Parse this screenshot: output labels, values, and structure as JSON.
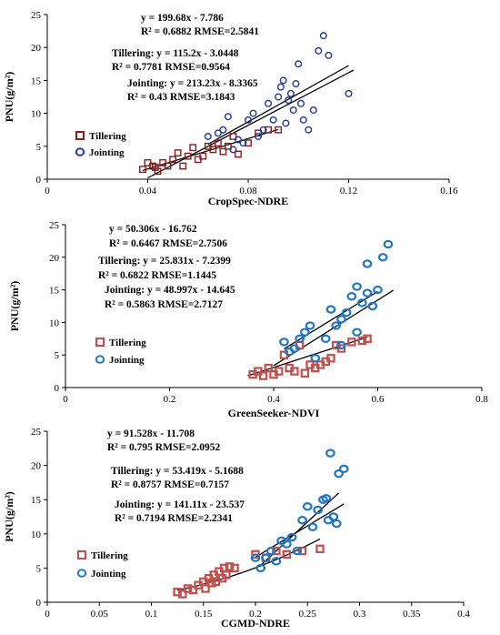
{
  "chart_data": [
    {
      "type": "scatter",
      "xlabel": "CropSpec-NDRE",
      "ylabel": "PNU(g/m²)",
      "xlim": [
        0,
        0.16
      ],
      "ylim": [
        0,
        25
      ],
      "xticks": [
        "0",
        "0.04",
        "0.08",
        "0.12",
        "0.16"
      ],
      "yticks": [
        "0",
        "5",
        "10",
        "15",
        "20",
        "25"
      ],
      "annotations": [
        "y = 199.68x - 7.786",
        "R² = 0.6882  RMSE=2.5841",
        "Tillering: y = 115.2x - 3.0448",
        "R² = 0.7781  RMSE=0.9564",
        "Jointing: y = 213.23x - 8.3365",
        "R² = 0.43  RMSE=3.1843"
      ],
      "legend": [
        {
          "label": "Tillering",
          "color": "#8b1a1a",
          "marker": "square"
        },
        {
          "label": "Jointing",
          "color": "#1f3a93",
          "marker": "circle"
        }
      ],
      "series": [
        {
          "name": "Tillering",
          "color": "#8b1a1a",
          "marker": "square",
          "x": [
            0.038,
            0.04,
            0.042,
            0.043,
            0.044,
            0.046,
            0.048,
            0.05,
            0.052,
            0.054,
            0.056,
            0.058,
            0.06,
            0.062,
            0.064,
            0.066,
            0.068,
            0.07,
            0.072,
            0.074,
            0.076,
            0.08,
            0.084,
            0.088,
            0.092
          ],
          "y": [
            1.5,
            2.5,
            2.0,
            1.8,
            1.2,
            2.5,
            2.0,
            3.0,
            4.0,
            2.0,
            3.5,
            4.8,
            3.0,
            3.5,
            5.0,
            4.5,
            5.5,
            4.2,
            5.0,
            6.5,
            3.8,
            5.5,
            7.0,
            7.5,
            7.5
          ]
        },
        {
          "name": "Jointing",
          "color": "#1f3a93",
          "marker": "circle",
          "x": [
            0.064,
            0.068,
            0.07,
            0.072,
            0.074,
            0.076,
            0.078,
            0.08,
            0.082,
            0.084,
            0.086,
            0.088,
            0.09,
            0.092,
            0.093,
            0.094,
            0.095,
            0.096,
            0.097,
            0.098,
            0.099,
            0.1,
            0.101,
            0.102,
            0.104,
            0.106,
            0.108,
            0.11,
            0.112,
            0.12
          ],
          "y": [
            6.5,
            7.0,
            7.5,
            9.5,
            4.5,
            6.0,
            5.5,
            9.0,
            10.0,
            6.5,
            7.5,
            11.5,
            9.0,
            12.5,
            14.0,
            15.0,
            8.5,
            12.0,
            13.0,
            10.5,
            14.5,
            17.5,
            11.5,
            9.0,
            7.5,
            10.5,
            19.5,
            21.8,
            18.8,
            13.0
          ]
        }
      ],
      "fits": [
        {
          "slope": 199.68,
          "intercept": -7.786,
          "x": [
            0.04,
            0.122
          ]
        },
        {
          "slope": 115.2,
          "intercept": -3.0448,
          "x": [
            0.038,
            0.092
          ]
        },
        {
          "slope": 213.23,
          "intercept": -8.3365,
          "x": [
            0.064,
            0.12
          ]
        }
      ]
    },
    {
      "type": "scatter",
      "xlabel": "GreenSeeker-NDVI",
      "ylabel": "PNU(g/m²)",
      "xlim": [
        0,
        0.8
      ],
      "ylim": [
        0,
        25
      ],
      "xticks": [
        "0",
        "0.2",
        "0.4",
        "0.6",
        "0.8"
      ],
      "yticks": [
        "0",
        "5",
        "10",
        "15",
        "20",
        "25"
      ],
      "annotations": [
        "y = 50.306x - 16.762",
        "R² = 0.6467  RMSE=2.7506",
        "Tillering: y = 25.831x - 7.2399",
        "R² = 0.6822  RMSE=1.1445",
        "Jointing: y = 48.997x - 14.645",
        "R² = 0.5863  RMSE=2.7127"
      ],
      "legend": [
        {
          "label": "Tillering",
          "color": "#c0504d",
          "marker": "square"
        },
        {
          "label": "Jointing",
          "color": "#1f77c4",
          "marker": "circle"
        }
      ],
      "series": [
        {
          "name": "Tillering",
          "color": "#c0504d",
          "marker": "square",
          "x": [
            0.36,
            0.37,
            0.38,
            0.39,
            0.4,
            0.41,
            0.42,
            0.43,
            0.44,
            0.45,
            0.46,
            0.47,
            0.48,
            0.49,
            0.5,
            0.51,
            0.52,
            0.53,
            0.55,
            0.57,
            0.58
          ],
          "y": [
            2.0,
            2.5,
            1.8,
            3.0,
            2.0,
            2.5,
            5.0,
            3.0,
            2.5,
            6.5,
            2.2,
            3.5,
            3.0,
            3.5,
            4.0,
            4.5,
            6.5,
            6.0,
            7.0,
            7.2,
            7.5
          ]
        },
        {
          "name": "Jointing",
          "color": "#1f77c4",
          "marker": "circle",
          "x": [
            0.42,
            0.43,
            0.44,
            0.45,
            0.46,
            0.47,
            0.48,
            0.5,
            0.51,
            0.52,
            0.53,
            0.54,
            0.55,
            0.56,
            0.57,
            0.58,
            0.58,
            0.59,
            0.6,
            0.61,
            0.62,
            0.56,
            0.53
          ],
          "y": [
            7.0,
            5.5,
            6.0,
            7.5,
            8.5,
            9.5,
            4.5,
            7.5,
            12.0,
            9.5,
            10.5,
            11.5,
            14.0,
            15.5,
            13.0,
            14.5,
            19.0,
            12.5,
            15.0,
            20.0,
            22.0,
            8.5,
            6.5
          ]
        }
      ],
      "fits": [
        {
          "slope": 50.306,
          "intercept": -16.762,
          "x": [
            0.4,
            0.63
          ]
        },
        {
          "slope": 25.831,
          "intercept": -7.2399,
          "x": [
            0.35,
            0.58
          ]
        },
        {
          "slope": 48.997,
          "intercept": -14.645,
          "x": [
            0.42,
            0.6
          ]
        }
      ]
    },
    {
      "type": "scatter",
      "xlabel": "CGMD-NDRE",
      "ylabel": "PNU(g/m²)",
      "xlim": [
        0,
        0.4
      ],
      "ylim": [
        0,
        25
      ],
      "xticks": [
        "0",
        "0.05",
        "0.1",
        "0.15",
        "0.2",
        "0.25",
        "0.3",
        "0.35",
        "0.4"
      ],
      "yticks": [
        "0",
        "5",
        "10",
        "15",
        "20",
        "25"
      ],
      "annotations": [
        "y = 91.528x - 11.708",
        "R² = 0.795  RMSE=2.0952",
        "Tillering: y = 53.419x - 5.1688",
        "R² = 0.8757  RMSE=0.7157",
        "Jointing: y = 141.11x - 23.537",
        "R² = 0.7194  RMSE=2.2341"
      ],
      "legend": [
        {
          "label": "Tillering",
          "color": "#c0504d",
          "marker": "square"
        },
        {
          "label": "Jointing",
          "color": "#1f77c4",
          "marker": "circle"
        }
      ],
      "series": [
        {
          "name": "Tillering",
          "color": "#c0504d",
          "marker": "square",
          "x": [
            0.125,
            0.13,
            0.135,
            0.14,
            0.145,
            0.15,
            0.152,
            0.155,
            0.158,
            0.16,
            0.162,
            0.165,
            0.168,
            0.17,
            0.172,
            0.175,
            0.18,
            0.2,
            0.21,
            0.22,
            0.23,
            0.245,
            0.262
          ],
          "y": [
            1.5,
            1.2,
            2.0,
            1.8,
            2.5,
            3.0,
            2.0,
            3.5,
            2.8,
            4.0,
            3.0,
            4.5,
            3.5,
            5.0,
            4.0,
            5.2,
            5.0,
            7.0,
            6.5,
            7.5,
            7.0,
            7.5,
            7.8
          ]
        },
        {
          "name": "Jointing",
          "color": "#1f77c4",
          "marker": "circle",
          "x": [
            0.2,
            0.205,
            0.21,
            0.215,
            0.22,
            0.225,
            0.23,
            0.235,
            0.24,
            0.245,
            0.25,
            0.255,
            0.26,
            0.265,
            0.268,
            0.27,
            0.272,
            0.275,
            0.278,
            0.28,
            0.285
          ],
          "y": [
            6.5,
            5.0,
            6.5,
            7.5,
            6.0,
            9.0,
            8.5,
            9.5,
            7.5,
            12.0,
            14.0,
            11.0,
            13.5,
            15.0,
            15.2,
            12.0,
            21.8,
            12.5,
            11.5,
            18.8,
            19.5
          ]
        }
      ],
      "fits": [
        {
          "slope": 91.528,
          "intercept": -11.708,
          "x": [
            0.2,
            0.285
          ]
        },
        {
          "type": "poly",
          "coef": [
            53.419,
            -5.1688
          ],
          "x": [
            0.125,
            0.262
          ],
          "curve": true
        },
        {
          "slope": 141.11,
          "intercept": -23.537,
          "x": [
            0.205,
            0.28
          ]
        }
      ]
    }
  ]
}
